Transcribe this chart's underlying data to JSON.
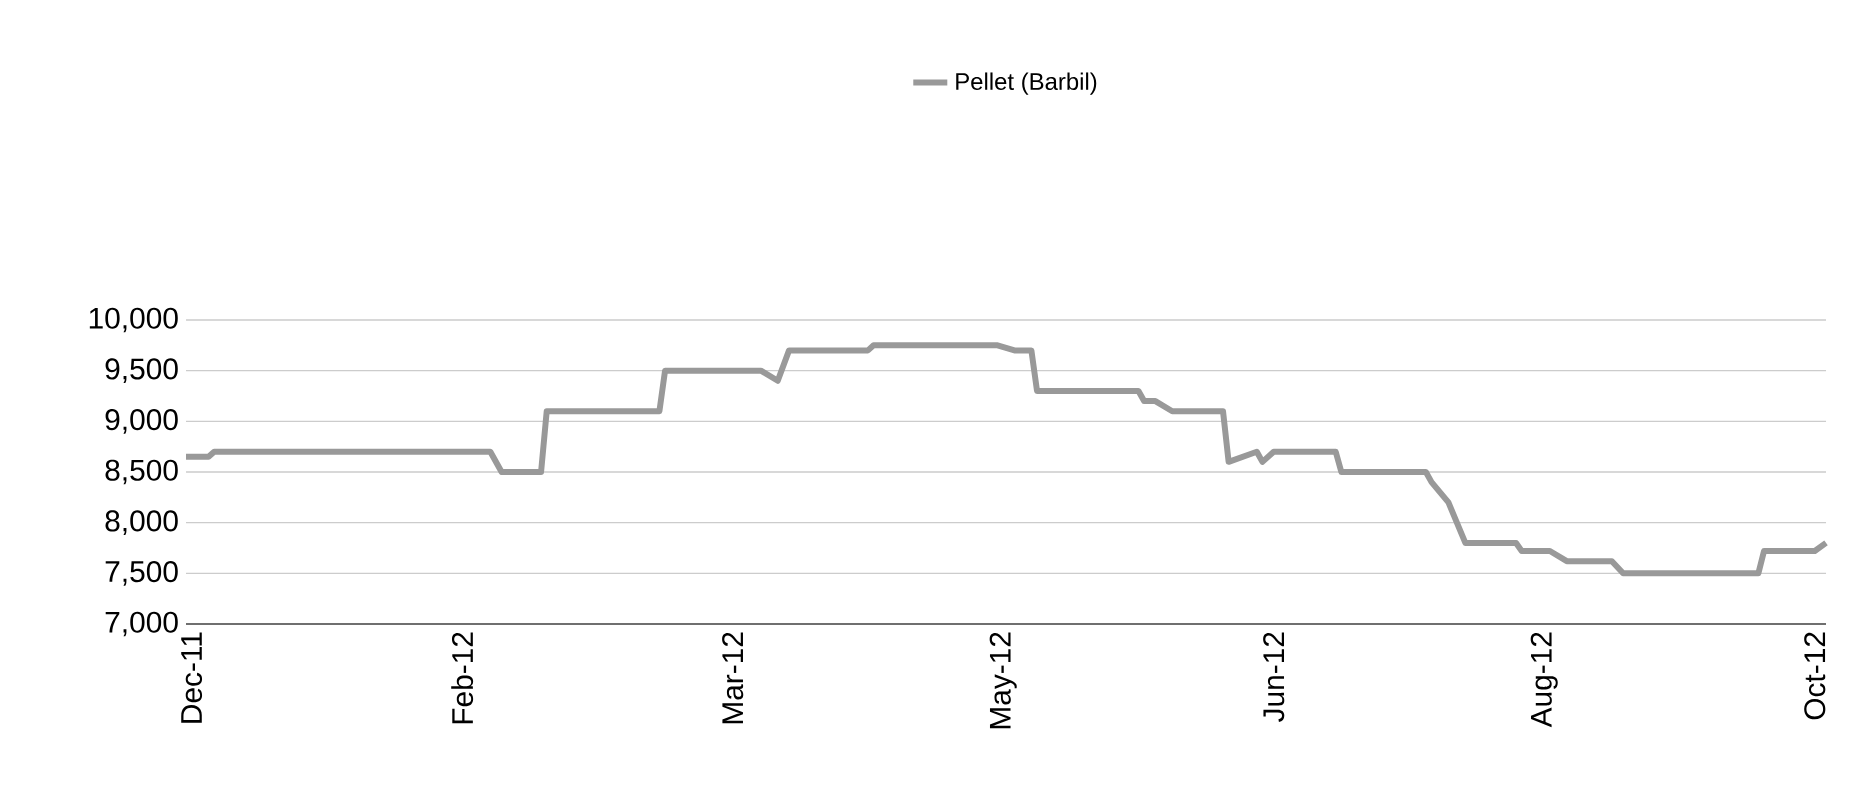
{
  "chart_data": {
    "type": "line",
    "x": [
      "2011-12-19",
      "2011-12-23",
      "2011-12-24",
      "2012-02-11",
      "2012-02-13",
      "2012-02-20",
      "2012-02-21",
      "2012-03-12",
      "2012-03-13",
      "2012-03-30",
      "2012-04-02",
      "2012-04-04",
      "2012-04-18",
      "2012-04-19",
      "2012-05-11",
      "2012-05-14",
      "2012-05-17",
      "2012-05-18",
      "2012-06-05",
      "2012-06-06",
      "2012-06-08",
      "2012-06-11",
      "2012-06-20",
      "2012-06-21",
      "2012-06-26",
      "2012-06-27",
      "2012-06-29",
      "2012-07-10",
      "2012-07-11",
      "2012-07-26",
      "2012-07-27",
      "2012-07-30",
      "2012-08-02",
      "2012-08-11",
      "2012-08-12",
      "2012-08-17",
      "2012-08-20",
      "2012-08-28",
      "2012-08-30",
      "2012-09-23",
      "2012-09-24",
      "2012-10-03",
      "2012-10-05"
    ],
    "series": [
      {
        "name": "Pellet (Barbil)",
        "color": "#999999",
        "values": [
          8650,
          8650,
          8700,
          8700,
          8500,
          8500,
          9100,
          9100,
          9500,
          9500,
          9400,
          9700,
          9700,
          9750,
          9750,
          9700,
          9700,
          9300,
          9300,
          9200,
          9200,
          9100,
          9100,
          8600,
          8700,
          8600,
          8700,
          8700,
          8500,
          8500,
          8400,
          8200,
          7800,
          7800,
          7720,
          7720,
          7620,
          7620,
          7500,
          7500,
          7720,
          7720,
          7800
        ]
      }
    ],
    "xlim": [
      "2011-12-19",
      "2012-10-05"
    ],
    "xticks": [
      {
        "value": "2011-12-20",
        "label": "Dec-11"
      },
      {
        "value": "2012-02-06",
        "label": "Feb-12"
      },
      {
        "value": "2012-03-25",
        "label": "Mar-12"
      },
      {
        "value": "2012-05-12",
        "label": "May-12"
      },
      {
        "value": "2012-06-29",
        "label": "Jun-12"
      },
      {
        "value": "2012-08-16",
        "label": "Aug-12"
      },
      {
        "value": "2012-10-03",
        "label": "Oct-12"
      }
    ],
    "ylim": [
      7000,
      10000
    ],
    "yticks": [
      {
        "value": 7000,
        "label": "7,000"
      },
      {
        "value": 7500,
        "label": "7,500"
      },
      {
        "value": 8000,
        "label": "8,000"
      },
      {
        "value": 8500,
        "label": "8,500"
      },
      {
        "value": 9000,
        "label": "9,000"
      },
      {
        "value": 9500,
        "label": "9,500"
      },
      {
        "value": 10000,
        "label": "10,000"
      }
    ],
    "grid": "y",
    "legend": "top"
  }
}
